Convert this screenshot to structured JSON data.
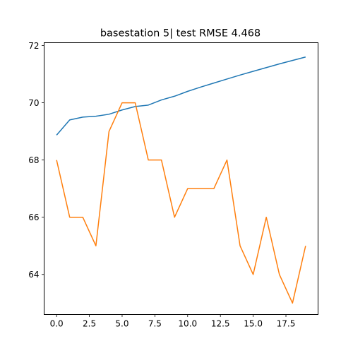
{
  "chart_data": {
    "type": "line",
    "title": "basestation 5| test RMSE 4.468",
    "xlabel": "",
    "ylabel": "",
    "xlim": [
      -0.95,
      19.95
    ],
    "ylim": [
      62.6,
      72.1
    ],
    "x_ticks": [
      "0.0",
      "2.5",
      "5.0",
      "7.5",
      "10.0",
      "12.5",
      "15.0",
      "17.5"
    ],
    "x_tick_values": [
      0,
      2.5,
      5,
      7.5,
      10,
      12.5,
      15,
      17.5
    ],
    "y_ticks": [
      "64",
      "66",
      "68",
      "70",
      "72"
    ],
    "y_tick_values": [
      64,
      66,
      68,
      70,
      72
    ],
    "grid": false,
    "legend": "none",
    "x": [
      0,
      1,
      2,
      3,
      4,
      5,
      6,
      7,
      8,
      9,
      10,
      11,
      12,
      13,
      14,
      15,
      16,
      17,
      18,
      19
    ],
    "series": [
      {
        "color": "#1f77b4",
        "values": [
          68.87,
          69.4,
          69.5,
          69.53,
          69.6,
          69.75,
          69.87,
          69.92,
          70.1,
          70.23,
          70.4,
          70.55,
          70.69,
          70.83,
          70.97,
          71.1,
          71.23,
          71.36,
          71.48,
          71.6
        ]
      },
      {
        "color": "#ff7f0e",
        "values": [
          68,
          66,
          66,
          65,
          69,
          70,
          70,
          68,
          68,
          66,
          67,
          67,
          67,
          68,
          65,
          64,
          66,
          64,
          63,
          65
        ]
      }
    ]
  }
}
